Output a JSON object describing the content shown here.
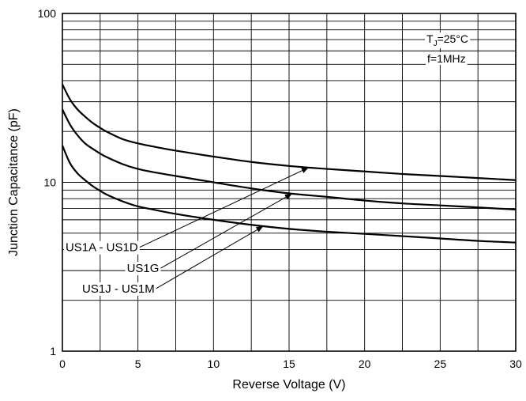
{
  "chart_data": {
    "type": "line",
    "title": "",
    "xlabel": "Reverse Voltage (V)",
    "ylabel": "Junction Capacitance (pF)",
    "xlim": [
      0,
      30
    ],
    "ylim": [
      1,
      100
    ],
    "y_scale": "log",
    "grid": true,
    "x_ticks": [
      0,
      5,
      10,
      15,
      20,
      25,
      30
    ],
    "y_tick_labels": [
      {
        "value": 1,
        "label": "1"
      },
      {
        "value": 10,
        "label": "10"
      },
      {
        "value": 100,
        "label": "100"
      }
    ],
    "annotations": {
      "tj_prefix": "T",
      "tj_sub": "J",
      "tj_suffix": "=25°C",
      "freq": "f=1MHz"
    },
    "series": [
      {
        "name": "US1A - US1D",
        "x": [
          0,
          0.5,
          1,
          1.5,
          2,
          2.5,
          3,
          4,
          5,
          6,
          7.5,
          10,
          12.5,
          15,
          17.5,
          20,
          22.5,
          25,
          27.5,
          30
        ],
        "y": [
          38,
          31,
          27,
          24.5,
          22.5,
          21,
          19.8,
          18,
          17,
          16.3,
          15.4,
          14.2,
          13.2,
          12.5,
          12,
          11.6,
          11.2,
          10.9,
          10.6,
          10.3
        ]
      },
      {
        "name": "US1G",
        "x": [
          0,
          0.5,
          1,
          1.5,
          2,
          2.5,
          3,
          4,
          5,
          6,
          7.5,
          10,
          12.5,
          15,
          17.5,
          20,
          22.5,
          25,
          27.5,
          30
        ],
        "y": [
          27,
          22,
          19,
          17,
          15.8,
          14.8,
          14,
          12.8,
          12,
          11.5,
          10.9,
          10,
          9.2,
          8.6,
          8.2,
          7.8,
          7.5,
          7.3,
          7.1,
          6.9
        ]
      },
      {
        "name": "US1J - US1M",
        "x": [
          0,
          0.5,
          1,
          1.5,
          2,
          2.5,
          3,
          4,
          5,
          6,
          7.5,
          10,
          12.5,
          15,
          17.5,
          20,
          22.5,
          25,
          27.5,
          30
        ],
        "y": [
          16.5,
          13,
          11.3,
          10.3,
          9.5,
          8.9,
          8.4,
          7.7,
          7.2,
          6.9,
          6.5,
          6,
          5.6,
          5.3,
          5.1,
          4.95,
          4.8,
          4.65,
          4.5,
          4.4
        ]
      }
    ],
    "label_pointers": [
      {
        "series": 0,
        "target_x": 16.3,
        "text_x": 5,
        "text_y": 4.12
      },
      {
        "series": 1,
        "target_x": 15.2,
        "text_x": 6.4,
        "text_y": 3.1
      },
      {
        "series": 2,
        "target_x": 13.3,
        "text_x": 6.1,
        "text_y": 2.35
      }
    ]
  }
}
